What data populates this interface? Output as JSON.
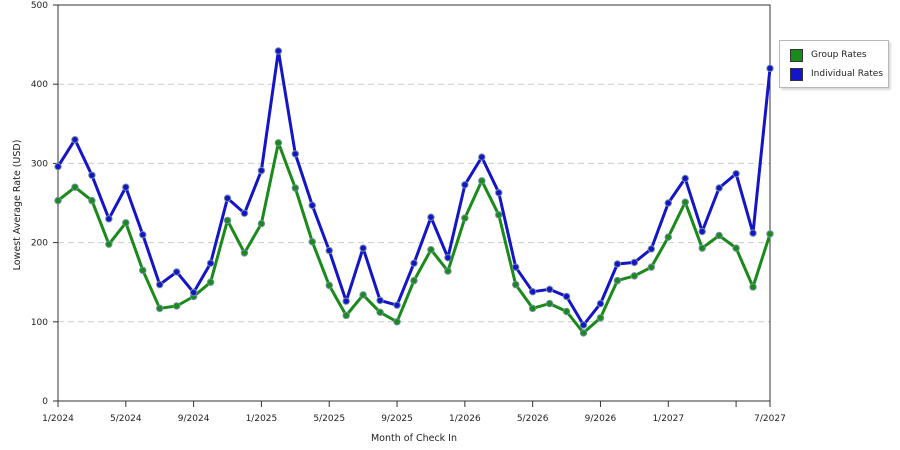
{
  "chart_data": {
    "type": "line",
    "xlabel": "Month of Check In",
    "ylabel": "Lowest Average Rate (USD)",
    "ylim": [
      0,
      500
    ],
    "yticks": [
      0,
      100,
      200,
      300,
      400,
      500
    ],
    "xticks": [
      {
        "index": 0,
        "label": "1/2024"
      },
      {
        "index": 4,
        "label": "5/2024"
      },
      {
        "index": 8,
        "label": "9/2024"
      },
      {
        "index": 12,
        "label": "1/2025"
      },
      {
        "index": 16,
        "label": "5/2025"
      },
      {
        "index": 20,
        "label": "9/2025"
      },
      {
        "index": 24,
        "label": "1/2026"
      },
      {
        "index": 28,
        "label": "5/2026"
      },
      {
        "index": 32,
        "label": "9/2026"
      },
      {
        "index": 36,
        "label": "1/2027"
      },
      {
        "index": 40,
        "label": ""
      },
      {
        "index": 42,
        "label": "7/2027"
      }
    ],
    "grid": true,
    "legend_position": "top-right",
    "series": [
      {
        "name": "Group Rates",
        "color": "#1a8a1a",
        "values": [
          253,
          270,
          253,
          198,
          225,
          165,
          117,
          120,
          132,
          150,
          228,
          187,
          224,
          326,
          269,
          201,
          146,
          108,
          134,
          112,
          100,
          152,
          191,
          164,
          231,
          278,
          235,
          147,
          117,
          123,
          113,
          86,
          105,
          152,
          158,
          169,
          207,
          251,
          193,
          209,
          193,
          144,
          211
        ]
      },
      {
        "name": "Individual Rates",
        "color": "#1414c8",
        "values": [
          296,
          330,
          285,
          230,
          270,
          210,
          147,
          163,
          137,
          174,
          256,
          237,
          291,
          442,
          312,
          247,
          190,
          126,
          193,
          127,
          121,
          174,
          232,
          181,
          273,
          308,
          263,
          169,
          138,
          141,
          132,
          96,
          123,
          173,
          175,
          192,
          250,
          281,
          214,
          269,
          287,
          212,
          420
        ]
      }
    ]
  }
}
